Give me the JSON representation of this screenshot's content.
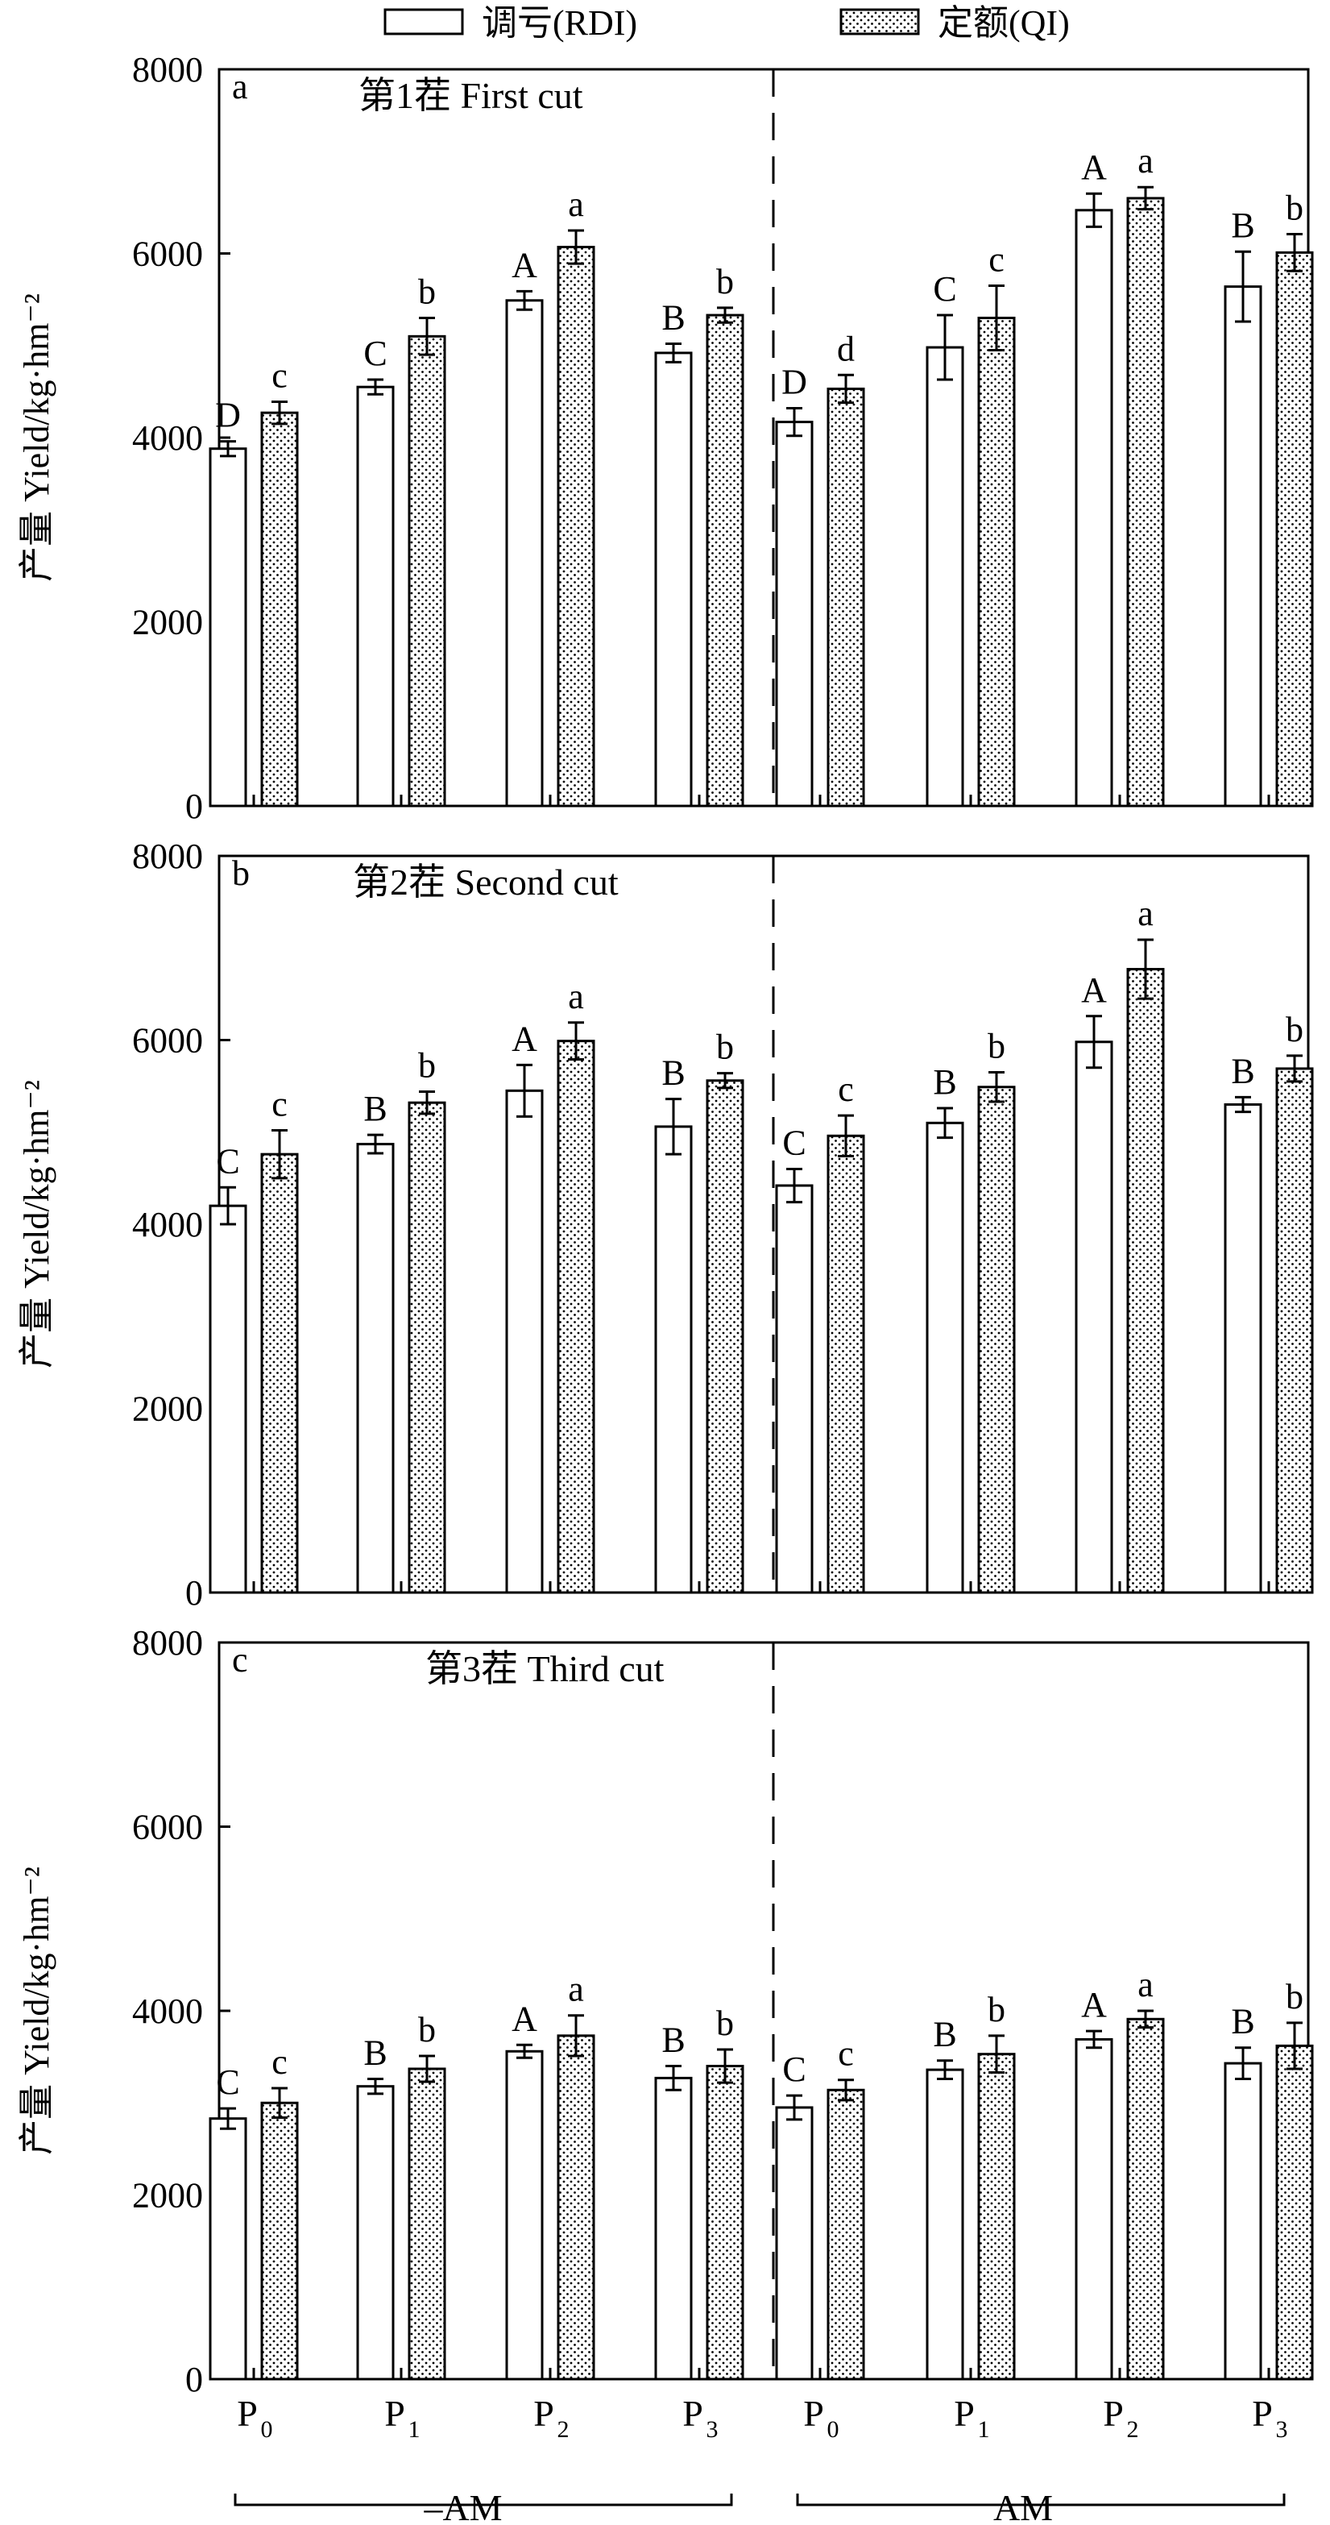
{
  "legend": {
    "rdi_label": "调亏(RDI)",
    "qi_label": "定额(QI)"
  },
  "x_groups": {
    "left": "–AM",
    "right": "AM"
  },
  "x_ticks": [
    {
      "main": "P",
      "sub": "0"
    },
    {
      "main": "P",
      "sub": "1"
    },
    {
      "main": "P",
      "sub": "2"
    },
    {
      "main": "P",
      "sub": "3"
    },
    {
      "main": "P",
      "sub": "0"
    },
    {
      "main": "P",
      "sub": "1"
    },
    {
      "main": "P",
      "sub": "2"
    },
    {
      "main": "P",
      "sub": "3"
    }
  ],
  "chart_data": [
    {
      "type": "bar",
      "panel": "a",
      "title": "第1茬 First cut",
      "ylabel": "产量 Yield/kg·hm⁻²",
      "ylim": [
        0,
        8000
      ],
      "yticks": [
        "0",
        "2000",
        "4000",
        "6000",
        "8000"
      ],
      "groups": [
        "–AM",
        "AM"
      ],
      "categories": [
        "P0",
        "P1",
        "P2",
        "P3",
        "P0",
        "P1",
        "P2",
        "P3"
      ],
      "series": [
        {
          "name": "调亏(RDI)",
          "values": [
            3880,
            4550,
            5490,
            4920,
            4170,
            4980,
            6470,
            5640
          ],
          "errors": [
            80,
            80,
            100,
            100,
            150,
            350,
            180,
            380
          ],
          "letters": [
            "D",
            "C",
            "A",
            "B",
            "D",
            "C",
            "A",
            "B"
          ]
        },
        {
          "name": "定额(QI)",
          "values": [
            4270,
            5100,
            6070,
            5330,
            4530,
            5300,
            6600,
            6010
          ],
          "errors": [
            120,
            200,
            180,
            80,
            150,
            350,
            120,
            200
          ],
          "letters": [
            "c",
            "b",
            "a",
            "b",
            "d",
            "c",
            "a",
            "b"
          ]
        }
      ]
    },
    {
      "type": "bar",
      "panel": "b",
      "title": "第2茬  Second  cut",
      "ylabel": "产量 Yield/kg·hm⁻²",
      "ylim": [
        0,
        8000
      ],
      "yticks": [
        "0",
        "2000",
        "4000",
        "6000",
        "8000"
      ],
      "groups": [
        "–AM",
        "AM"
      ],
      "categories": [
        "P0",
        "P1",
        "P2",
        "P3",
        "P0",
        "P1",
        "P2",
        "P3"
      ],
      "series": [
        {
          "name": "调亏(RDI)",
          "values": [
            4200,
            4870,
            5450,
            5060,
            4420,
            5100,
            5980,
            5300
          ],
          "errors": [
            200,
            100,
            280,
            300,
            180,
            160,
            280,
            80
          ],
          "letters": [
            "C",
            "B",
            "A",
            "B",
            "C",
            "B",
            "A",
            "B"
          ]
        },
        {
          "name": "定额(QI)",
          "values": [
            4760,
            5320,
            5990,
            5560,
            4960,
            5490,
            6770,
            5690
          ],
          "errors": [
            260,
            120,
            200,
            80,
            220,
            160,
            320,
            140
          ],
          "letters": [
            "c",
            "b",
            "a",
            "b",
            "c",
            "b",
            "a",
            "b"
          ]
        }
      ]
    },
    {
      "type": "bar",
      "panel": "c",
      "title": "第3茬 Third cut",
      "ylabel": "产量 Yield/kg·hm⁻²",
      "ylim": [
        0,
        8000
      ],
      "yticks": [
        "0",
        "2000",
        "4000",
        "6000",
        "8000"
      ],
      "groups": [
        "–AM",
        "AM"
      ],
      "categories": [
        "P0",
        "P1",
        "P2",
        "P3",
        "P0",
        "P1",
        "P2",
        "P3"
      ],
      "series": [
        {
          "name": "调亏(RDI)",
          "values": [
            2830,
            3180,
            3560,
            3270,
            2950,
            3360,
            3690,
            3430
          ],
          "errors": [
            110,
            80,
            70,
            130,
            130,
            100,
            90,
            170
          ],
          "letters": [
            "C",
            "B",
            "A",
            "B",
            "C",
            "B",
            "A",
            "B"
          ]
        },
        {
          "name": "定额(QI)",
          "values": [
            3000,
            3370,
            3730,
            3400,
            3140,
            3530,
            3910,
            3620
          ],
          "errors": [
            160,
            140,
            220,
            180,
            110,
            200,
            90,
            250
          ],
          "letters": [
            "c",
            "b",
            "a",
            "b",
            "c",
            "b",
            "a",
            "b"
          ]
        }
      ]
    }
  ]
}
